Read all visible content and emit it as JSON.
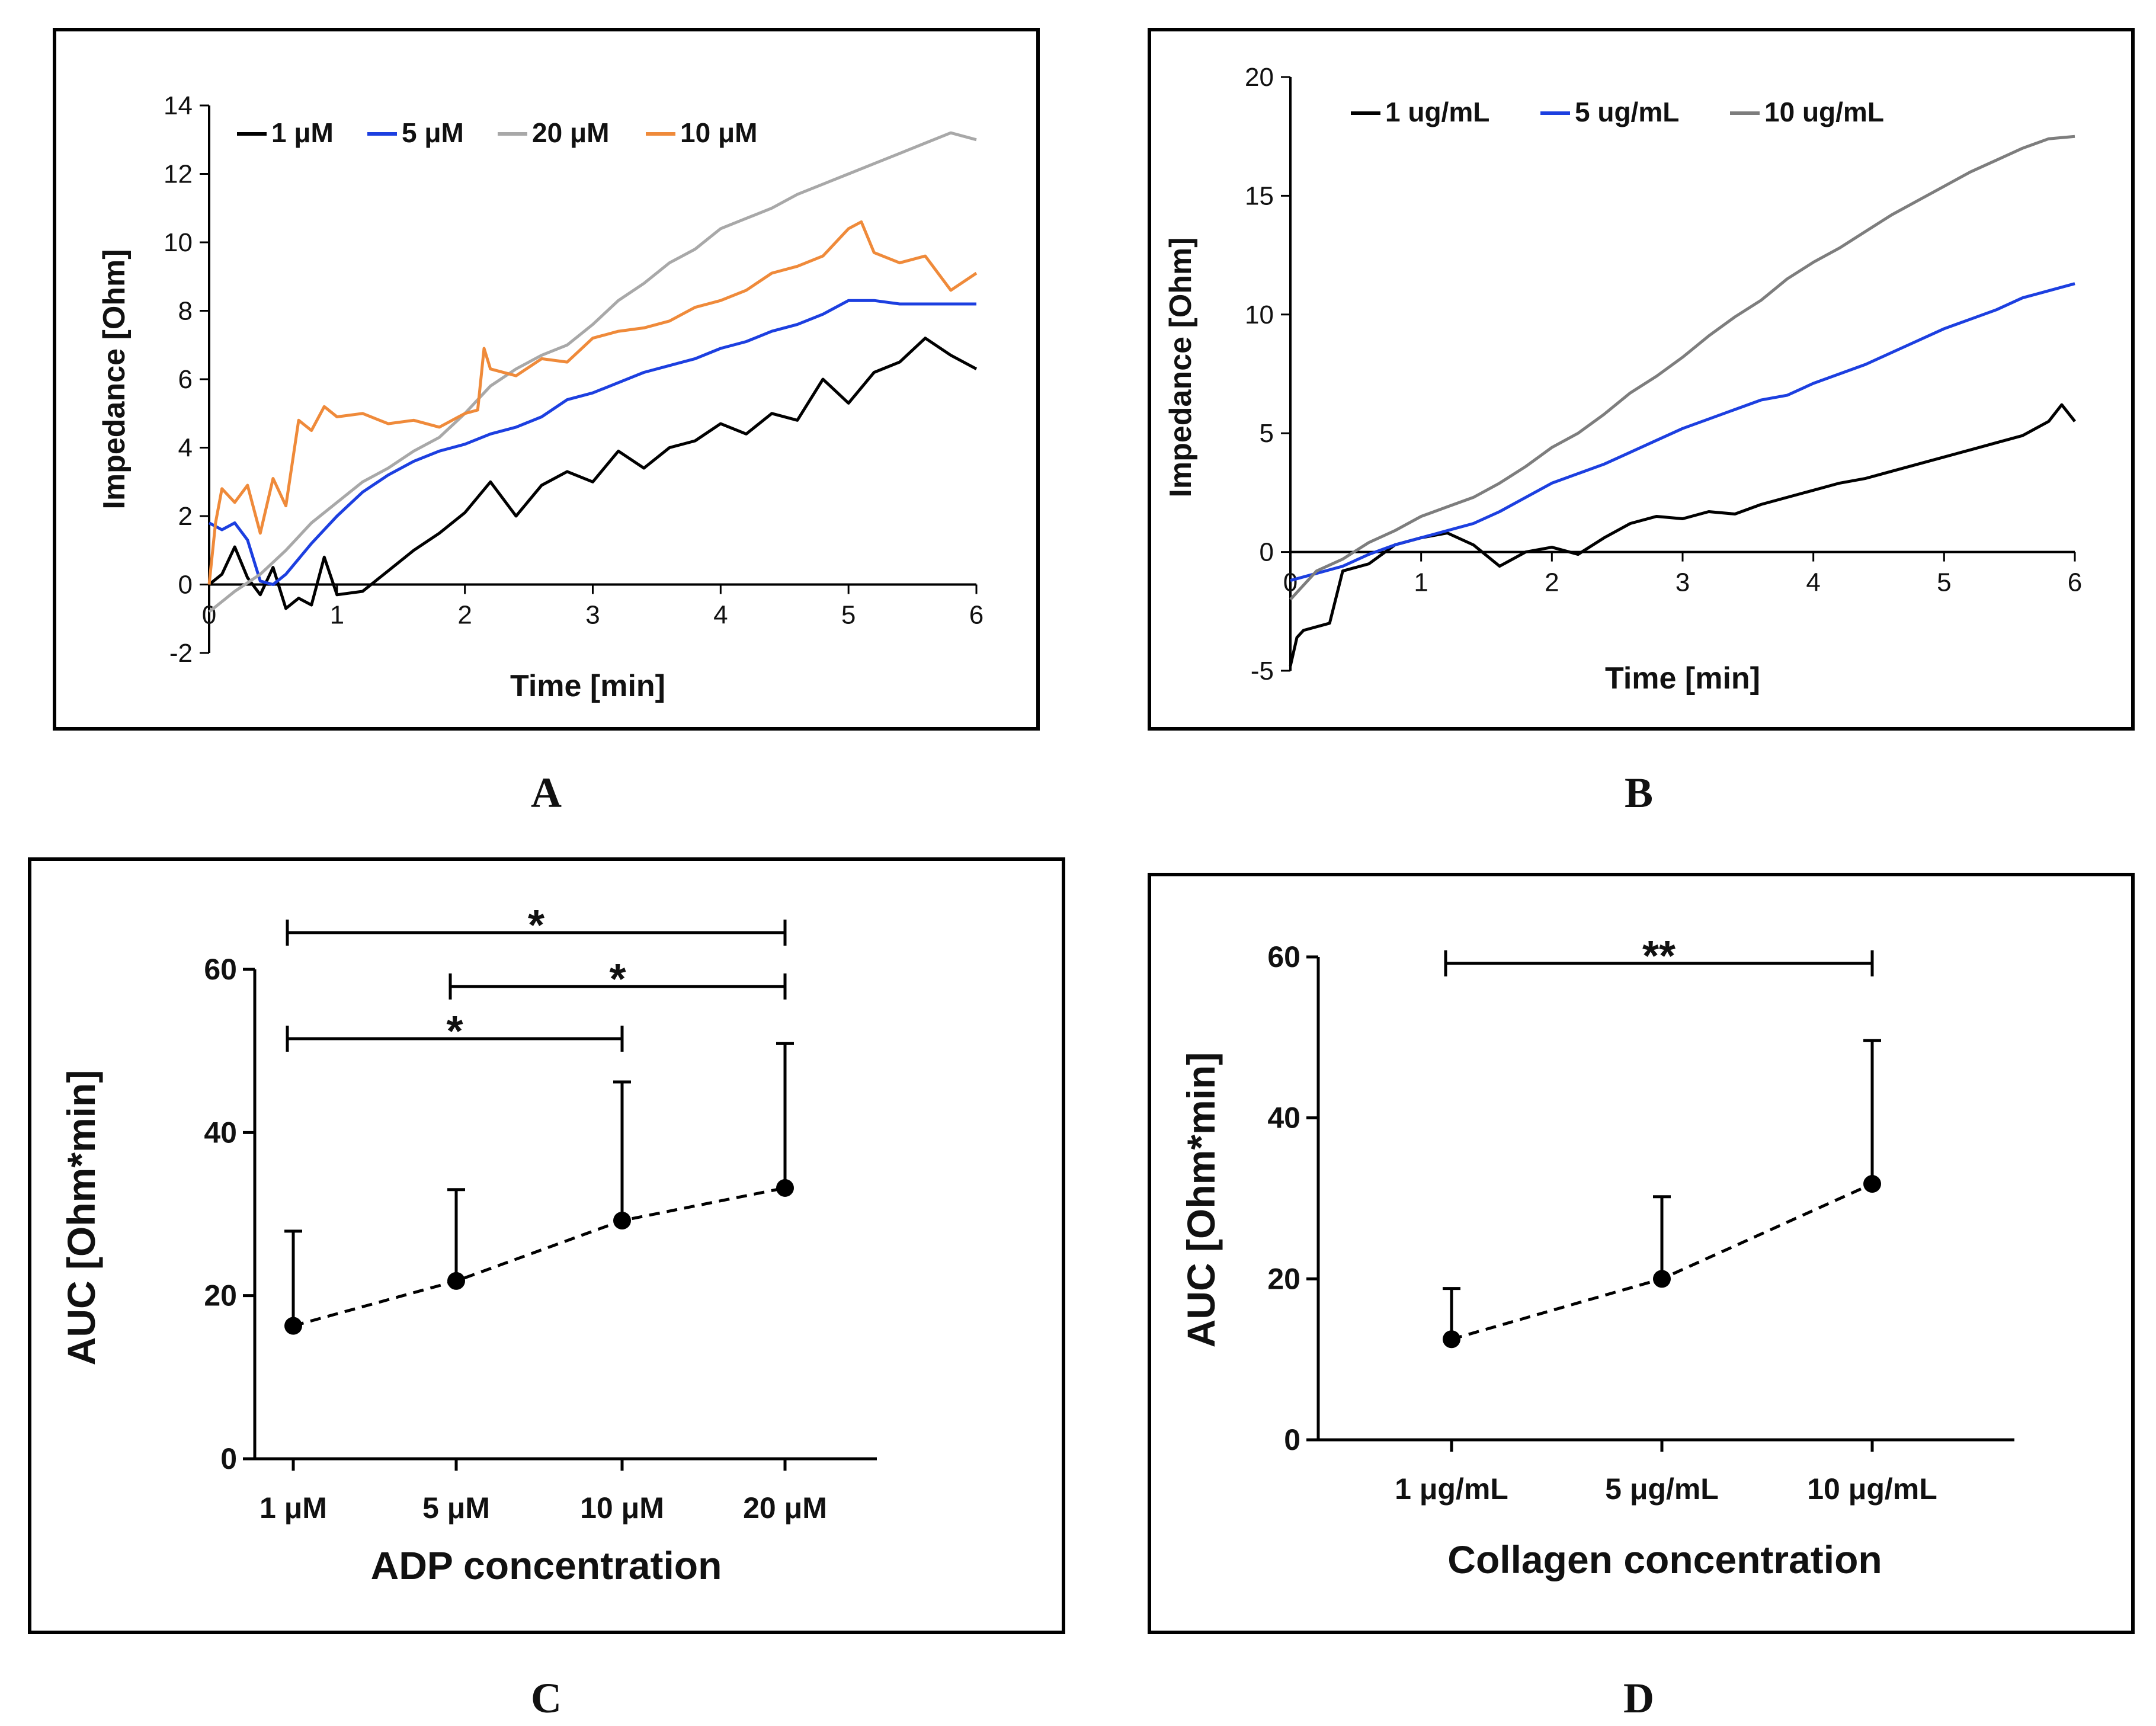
{
  "panels": {
    "A": "A",
    "B": "B",
    "C": "C",
    "D": "D"
  },
  "chart_data": [
    {
      "id": "A",
      "type": "line",
      "xlabel": "Time [min]",
      "ylabel": "Impedance [Ohm]",
      "xlim": [
        0,
        6
      ],
      "ylim": [
        -2,
        14
      ],
      "xticks": [
        0,
        1,
        2,
        3,
        4,
        5,
        6
      ],
      "yticks": [
        -2,
        0,
        2,
        4,
        6,
        8,
        10,
        12,
        14
      ],
      "legend_position": "top-left",
      "series": [
        {
          "name": "1 μM",
          "color": "#000000",
          "x": [
            0,
            0.1,
            0.2,
            0.3,
            0.4,
            0.5,
            0.6,
            0.7,
            0.8,
            0.9,
            1.0,
            1.2,
            1.4,
            1.6,
            1.8,
            2.0,
            2.2,
            2.4,
            2.6,
            2.8,
            3.0,
            3.2,
            3.4,
            3.6,
            3.8,
            4.0,
            4.2,
            4.4,
            4.6,
            4.8,
            5.0,
            5.2,
            5.4,
            5.6,
            5.8,
            6.0
          ],
          "y": [
            0,
            0.3,
            1.1,
            0.2,
            -0.3,
            0.5,
            -0.7,
            -0.4,
            -0.6,
            0.8,
            -0.3,
            -0.2,
            0.4,
            1.0,
            1.5,
            2.1,
            3.0,
            2.0,
            2.9,
            3.3,
            3.0,
            3.9,
            3.4,
            4.0,
            4.2,
            4.7,
            4.4,
            5.0,
            4.8,
            6.0,
            5.3,
            6.2,
            6.5,
            7.2,
            6.7,
            6.3
          ]
        },
        {
          "name": "5 μM",
          "color": "#1c3fe0",
          "x": [
            0,
            0.1,
            0.2,
            0.3,
            0.4,
            0.5,
            0.6,
            0.8,
            1.0,
            1.2,
            1.4,
            1.6,
            1.8,
            2.0,
            2.2,
            2.4,
            2.6,
            2.8,
            3.0,
            3.2,
            3.4,
            3.6,
            3.8,
            4.0,
            4.2,
            4.4,
            4.6,
            4.8,
            5.0,
            5.2,
            5.4,
            5.6,
            5.8,
            6.0
          ],
          "y": [
            1.8,
            1.6,
            1.8,
            1.3,
            0.1,
            0.0,
            0.3,
            1.2,
            2.0,
            2.7,
            3.2,
            3.6,
            3.9,
            4.1,
            4.4,
            4.6,
            4.9,
            5.4,
            5.6,
            5.9,
            6.2,
            6.4,
            6.6,
            6.9,
            7.1,
            7.4,
            7.6,
            7.9,
            8.3,
            8.3,
            8.2,
            8.2,
            8.2,
            8.2
          ]
        },
        {
          "name": "20 μM",
          "color": "#a8a8a8",
          "x": [
            0,
            0.2,
            0.4,
            0.6,
            0.8,
            1.0,
            1.2,
            1.4,
            1.6,
            1.8,
            2.0,
            2.2,
            2.4,
            2.6,
            2.8,
            3.0,
            3.2,
            3.4,
            3.6,
            3.8,
            4.0,
            4.2,
            4.4,
            4.6,
            4.8,
            5.0,
            5.2,
            5.4,
            5.6,
            5.8,
            6.0
          ],
          "y": [
            -0.8,
            -0.2,
            0.3,
            1.0,
            1.8,
            2.4,
            3.0,
            3.4,
            3.9,
            4.3,
            5.0,
            5.8,
            6.3,
            6.7,
            7.0,
            7.6,
            8.3,
            8.8,
            9.4,
            9.8,
            10.4,
            10.7,
            11.0,
            11.4,
            11.7,
            12.0,
            12.3,
            12.6,
            12.9,
            13.2,
            13.0
          ]
        },
        {
          "name": "10 μM",
          "color": "#ef8a3a",
          "x": [
            0,
            0.05,
            0.1,
            0.2,
            0.3,
            0.4,
            0.5,
            0.6,
            0.7,
            0.8,
            0.9,
            1.0,
            1.2,
            1.4,
            1.6,
            1.8,
            2.0,
            2.1,
            2.15,
            2.2,
            2.4,
            2.6,
            2.8,
            3.0,
            3.2,
            3.4,
            3.6,
            3.8,
            4.0,
            4.2,
            4.4,
            4.6,
            4.8,
            5.0,
            5.1,
            5.2,
            5.4,
            5.6,
            5.8,
            6.0
          ],
          "y": [
            0,
            1.8,
            2.8,
            2.4,
            2.9,
            1.5,
            3.1,
            2.3,
            4.8,
            4.5,
            5.2,
            4.9,
            5.0,
            4.7,
            4.8,
            4.6,
            5.0,
            5.1,
            6.9,
            6.3,
            6.1,
            6.6,
            6.5,
            7.2,
            7.4,
            7.5,
            7.7,
            8.1,
            8.3,
            8.6,
            9.1,
            9.3,
            9.6,
            10.4,
            10.6,
            9.7,
            9.4,
            9.6,
            8.6,
            9.1
          ]
        }
      ]
    },
    {
      "id": "B",
      "type": "line",
      "xlabel": "Time [min]",
      "ylabel": "Impedance [Ohm]",
      "xlim": [
        0,
        6
      ],
      "ylim": [
        -5,
        20
      ],
      "xticks": [
        0,
        1,
        2,
        3,
        4,
        5,
        6
      ],
      "yticks": [
        -5,
        0,
        5,
        10,
        15,
        20
      ],
      "legend_position": "top-left",
      "series": [
        {
          "name": "1 ug/mL",
          "color": "#000000",
          "x": [
            0,
            0.05,
            0.1,
            0.3,
            0.4,
            0.6,
            0.8,
            1.0,
            1.2,
            1.4,
            1.6,
            1.8,
            2.0,
            2.2,
            2.4,
            2.6,
            2.8,
            3.0,
            3.2,
            3.4,
            3.6,
            3.8,
            4.0,
            4.2,
            4.4,
            4.6,
            4.8,
            5.0,
            5.2,
            5.4,
            5.6,
            5.8,
            5.9,
            6.0
          ],
          "y": [
            -4.8,
            -3.6,
            -3.3,
            -3.0,
            -0.8,
            -0.5,
            0.3,
            0.6,
            0.8,
            0.3,
            -0.6,
            0.0,
            0.2,
            -0.1,
            0.6,
            1.2,
            1.5,
            1.4,
            1.7,
            1.6,
            2.0,
            2.3,
            2.6,
            2.9,
            3.1,
            3.4,
            3.7,
            4.0,
            4.3,
            4.6,
            4.9,
            5.5,
            6.2,
            5.5
          ]
        },
        {
          "name": "5 ug/mL",
          "color": "#1c3fe0",
          "x": [
            0,
            0.2,
            0.4,
            0.6,
            0.8,
            1.0,
            1.2,
            1.4,
            1.6,
            1.8,
            2.0,
            2.2,
            2.4,
            2.6,
            2.8,
            3.0,
            3.2,
            3.4,
            3.6,
            3.8,
            4.0,
            4.2,
            4.4,
            4.6,
            4.8,
            5.0,
            5.2,
            5.4,
            5.6,
            5.8,
            6.0
          ],
          "y": [
            -1.2,
            -0.9,
            -0.6,
            -0.1,
            0.3,
            0.6,
            0.9,
            1.2,
            1.7,
            2.3,
            2.9,
            3.3,
            3.7,
            4.2,
            4.7,
            5.2,
            5.6,
            6.0,
            6.4,
            6.6,
            7.1,
            7.5,
            7.9,
            8.4,
            8.9,
            9.4,
            9.8,
            10.2,
            10.7,
            11.0,
            11.3
          ]
        },
        {
          "name": "10 ug/mL",
          "color": "#7d7d7d",
          "x": [
            0,
            0.2,
            0.4,
            0.6,
            0.8,
            1.0,
            1.2,
            1.4,
            1.6,
            1.8,
            2.0,
            2.2,
            2.4,
            2.6,
            2.8,
            3.0,
            3.2,
            3.4,
            3.6,
            3.8,
            4.0,
            4.2,
            4.4,
            4.6,
            4.8,
            5.0,
            5.2,
            5.4,
            5.6,
            5.8,
            6.0
          ],
          "y": [
            -2.0,
            -0.8,
            -0.3,
            0.4,
            0.9,
            1.5,
            1.9,
            2.3,
            2.9,
            3.6,
            4.4,
            5.0,
            5.8,
            6.7,
            7.4,
            8.2,
            9.1,
            9.9,
            10.6,
            11.5,
            12.2,
            12.8,
            13.5,
            14.2,
            14.8,
            15.4,
            16.0,
            16.5,
            17.0,
            17.4,
            17.5
          ]
        }
      ]
    },
    {
      "id": "C",
      "type": "scatter",
      "xlabel": "ADP concentration",
      "ylabel": "AUC [Ohm*min]",
      "categories": [
        "1 μM",
        "5  μM",
        "10  μM",
        "20  μM"
      ],
      "values": [
        16.3,
        21.8,
        29.2,
        33.2
      ],
      "error_upper": [
        27.9,
        33.0,
        46.2,
        50.9
      ],
      "ylim": [
        0,
        60
      ],
      "yticks": [
        0,
        20,
        40,
        60
      ],
      "significance": [
        {
          "from": 0,
          "to": 3,
          "label": "*",
          "y": 64.5
        },
        {
          "from": 1,
          "to": 3,
          "label": "*",
          "y": 57.9
        },
        {
          "from": 0,
          "to": 2,
          "label": "*",
          "y": 51.5
        }
      ]
    },
    {
      "id": "D",
      "type": "scatter",
      "xlabel": "Collagen concentration",
      "ylabel": "AUC [Ohm*min]",
      "categories": [
        "1 μg/mL",
        "5 μg/mL",
        "10 μg/mL"
      ],
      "values": [
        12.5,
        20.0,
        31.8
      ],
      "error_upper": [
        18.8,
        30.2,
        49.6
      ],
      "ylim": [
        0,
        60
      ],
      "yticks": [
        0,
        20,
        40,
        60
      ],
      "significance": [
        {
          "from": 0,
          "to": 2,
          "label": "**",
          "y": 59.2
        }
      ]
    }
  ]
}
